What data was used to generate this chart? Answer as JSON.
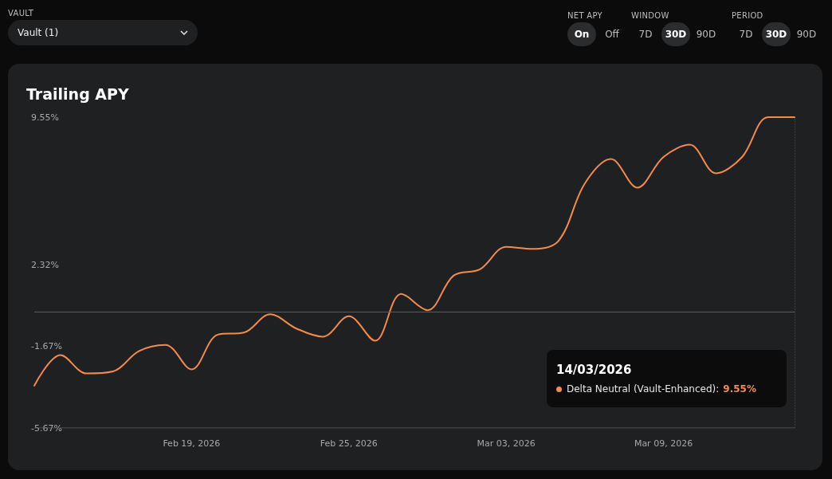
{
  "chart_data": {
    "type": "line",
    "title": "Trailing APY",
    "annotations": [
      "VAULT",
      "Vault (1)",
      "NET APY",
      "On",
      "Off",
      "WINDOW",
      "7D",
      "30D",
      "90D",
      "PERIOD",
      "7D",
      "30D",
      "90D",
      "14/03/2026",
      "Delta Neutral (Vault-Enhanced):",
      "9.55%"
    ],
    "x": [
      "2026-02-13",
      "2026-02-14",
      "2026-02-15",
      "2026-02-16",
      "2026-02-17",
      "2026-02-18",
      "2026-02-19",
      "2026-02-20",
      "2026-02-21",
      "2026-02-22",
      "2026-02-23",
      "2026-02-24",
      "2026-02-25",
      "2026-02-26",
      "2026-02-27",
      "2026-02-28",
      "2026-03-01",
      "2026-03-02",
      "2026-03-03",
      "2026-03-04",
      "2026-03-05",
      "2026-03-06",
      "2026-03-07",
      "2026-03-08",
      "2026-03-09",
      "2026-03-10",
      "2026-03-11",
      "2026-03-12",
      "2026-03-13",
      "2026-03-14"
    ],
    "series": [
      {
        "color": "#f58a4b",
        "values": [
          -3.6,
          -2.1,
          -3.0,
          -2.9,
          -1.9,
          -1.6,
          -2.8,
          -1.1,
          -1.0,
          -0.1,
          -0.8,
          -1.2,
          -0.2,
          -1.4,
          0.9,
          0.1,
          1.8,
          2.1,
          3.2,
          3.1,
          3.5,
          6.3,
          7.5,
          6.1,
          7.6,
          8.2,
          6.8,
          7.6,
          9.55,
          9.55
        ]
      }
    ],
    "xlim": [
      "2026-02-13",
      "2026-03-14"
    ],
    "xticks": [
      {
        "value": "2026-02-19",
        "label": "Feb 19, 2026"
      },
      {
        "value": "2026-02-25",
        "label": "Feb 25, 2026"
      },
      {
        "value": "2026-03-03",
        "label": "Mar 03, 2026"
      },
      {
        "value": "2026-03-09",
        "label": "Mar 09, 2026"
      }
    ],
    "ylim": [
      -5.67,
      9.55
    ],
    "yticks": [
      {
        "value": -5.67,
        "label": "-5.67%"
      },
      {
        "value": -1.67,
        "label": "-1.67%"
      },
      {
        "value": 2.32,
        "label": "2.32%"
      },
      {
        "value": 9.55,
        "label": "9.55%"
      }
    ],
    "ref_lines": [
      {
        "axis": "y",
        "value": 0,
        "label": null,
        "color": "#5c5c5c",
        "line_style": "solid"
      },
      {
        "axis": "x",
        "value": "2026-03-14",
        "label": null,
        "color": "#4a4a4a",
        "line_style": "dotted"
      }
    ],
    "grid": false,
    "marker": "none",
    "line_style": "solid"
  }
}
